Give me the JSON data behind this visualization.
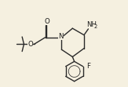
{
  "bg_color": "#f5f0e0",
  "line_color": "#2a2a2a",
  "text_color": "#1a1a1a",
  "figsize": [
    1.63,
    1.11
  ],
  "dpi": 100,
  "NH2_label": "NH",
  "two_label": "2",
  "N_label": "N",
  "O_top_label": "O",
  "O_bot_label": "O",
  "F_label": "F",
  "lw": 1.0,
  "xlim": [
    0,
    10
  ],
  "ylim": [
    0,
    7
  ]
}
